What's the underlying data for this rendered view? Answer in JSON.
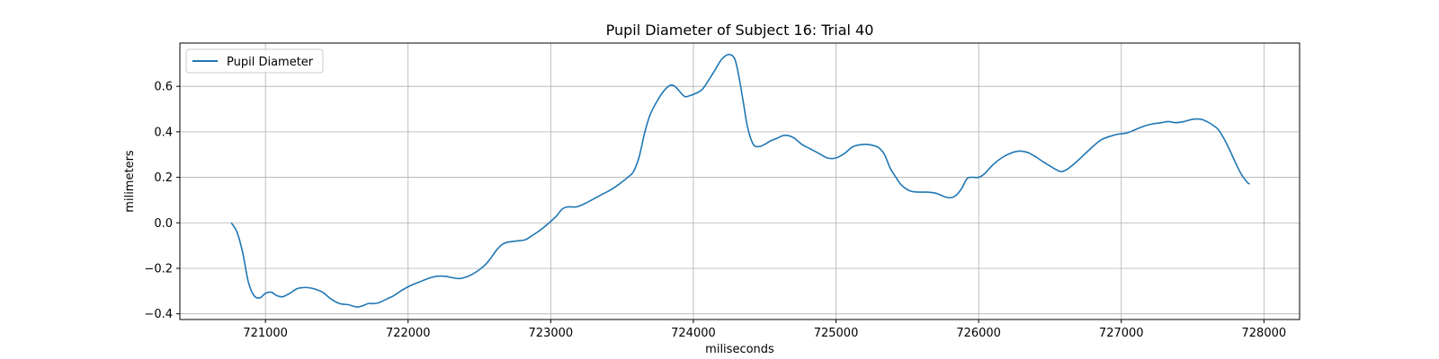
{
  "chart_data": {
    "type": "line",
    "title": "Pupil Diameter of Subject 16: Trial 40",
    "xlabel": "miliseconds",
    "ylabel": "milimeters",
    "xlim": [
      720400,
      728250
    ],
    "ylim": [
      -0.425,
      0.79
    ],
    "xticks": [
      721000,
      722000,
      723000,
      724000,
      725000,
      726000,
      727000,
      728000
    ],
    "xtick_labels": [
      "721000",
      "722000",
      "723000",
      "724000",
      "725000",
      "726000",
      "727000",
      "728000"
    ],
    "yticks": [
      -0.4,
      -0.2,
      0.0,
      0.2,
      0.4,
      0.6
    ],
    "ytick_labels": [
      "−0.4",
      "−0.2",
      "0.0",
      "0.2",
      "0.4",
      "0.6"
    ],
    "grid": true,
    "legend_position": "top-left",
    "color": "#1f77b4",
    "series": [
      {
        "name": "Pupil Diameter",
        "x": [
          720760,
          720800,
          720840,
          720880,
          720920,
          720960,
          721000,
          721040,
          721080,
          721120,
          721170,
          721220,
          721260,
          721300,
          721340,
          721400,
          721460,
          721520,
          721580,
          721640,
          721680,
          721720,
          721760,
          721800,
          721850,
          721900,
          721960,
          722020,
          722080,
          722140,
          722200,
          722260,
          722300,
          722360,
          722420,
          722480,
          722540,
          722580,
          722620,
          722660,
          722700,
          722760,
          722820,
          722860,
          722920,
          722980,
          723040,
          723080,
          723120,
          723180,
          723240,
          723300,
          723360,
          723420,
          723480,
          723540,
          723580,
          723620,
          723660,
          723700,
          723760,
          723800,
          723840,
          723870,
          723900,
          723940,
          723980,
          724020,
          724060,
          724100,
          724150,
          724200,
          724250,
          724290,
          724320,
          724350,
          724380,
          724420,
          724460,
          724500,
          724540,
          724580,
          724640,
          724700,
          724760,
          724820,
          724880,
          724940,
          725000,
          725060,
          725120,
          725200,
          725260,
          725300,
          725340,
          725380,
          725420,
          725460,
          725520,
          725580,
          725640,
          725700,
          725760,
          725800,
          725840,
          725880,
          725920,
          725960,
          726000,
          726040,
          726100,
          726160,
          726220,
          726280,
          726340,
          726400,
          726460,
          726500,
          726540,
          726580,
          726620,
          726680,
          726740,
          726800,
          726860,
          726920,
          726980,
          727040,
          727100,
          727160,
          727220,
          727280,
          727330,
          727380,
          727440,
          727500,
          727560,
          727600,
          727640,
          727680,
          727720,
          727760,
          727800,
          727840,
          727880,
          727900
        ],
        "y": [
          0.0,
          -0.04,
          -0.13,
          -0.26,
          -0.32,
          -0.33,
          -0.31,
          -0.305,
          -0.32,
          -0.325,
          -0.31,
          -0.29,
          -0.285,
          -0.285,
          -0.29,
          -0.305,
          -0.335,
          -0.355,
          -0.36,
          -0.37,
          -0.365,
          -0.355,
          -0.355,
          -0.35,
          -0.335,
          -0.32,
          -0.295,
          -0.275,
          -0.26,
          -0.245,
          -0.235,
          -0.235,
          -0.24,
          -0.245,
          -0.235,
          -0.215,
          -0.185,
          -0.155,
          -0.12,
          -0.095,
          -0.085,
          -0.08,
          -0.075,
          -0.06,
          -0.035,
          -0.005,
          0.03,
          0.06,
          0.07,
          0.07,
          0.085,
          0.105,
          0.125,
          0.145,
          0.17,
          0.2,
          0.225,
          0.29,
          0.4,
          0.48,
          0.55,
          0.585,
          0.605,
          0.6,
          0.58,
          0.555,
          0.56,
          0.57,
          0.585,
          0.62,
          0.67,
          0.72,
          0.74,
          0.72,
          0.64,
          0.53,
          0.42,
          0.345,
          0.335,
          0.345,
          0.36,
          0.37,
          0.385,
          0.375,
          0.345,
          0.325,
          0.305,
          0.285,
          0.285,
          0.305,
          0.335,
          0.345,
          0.34,
          0.33,
          0.3,
          0.24,
          0.2,
          0.165,
          0.14,
          0.135,
          0.135,
          0.13,
          0.115,
          0.11,
          0.12,
          0.15,
          0.195,
          0.2,
          0.2,
          0.215,
          0.255,
          0.285,
          0.305,
          0.315,
          0.31,
          0.29,
          0.265,
          0.25,
          0.235,
          0.225,
          0.235,
          0.265,
          0.3,
          0.335,
          0.365,
          0.38,
          0.39,
          0.395,
          0.41,
          0.425,
          0.435,
          0.44,
          0.445,
          0.44,
          0.445,
          0.455,
          0.455,
          0.445,
          0.43,
          0.41,
          0.37,
          0.32,
          0.265,
          0.215,
          0.18,
          0.17
        ]
      }
    ]
  }
}
